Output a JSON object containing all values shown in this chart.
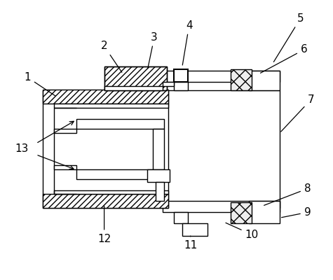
{
  "bg_color": "#ffffff",
  "line_color": "#000000",
  "figsize": [
    4.75,
    4.0
  ],
  "dpi": 100
}
